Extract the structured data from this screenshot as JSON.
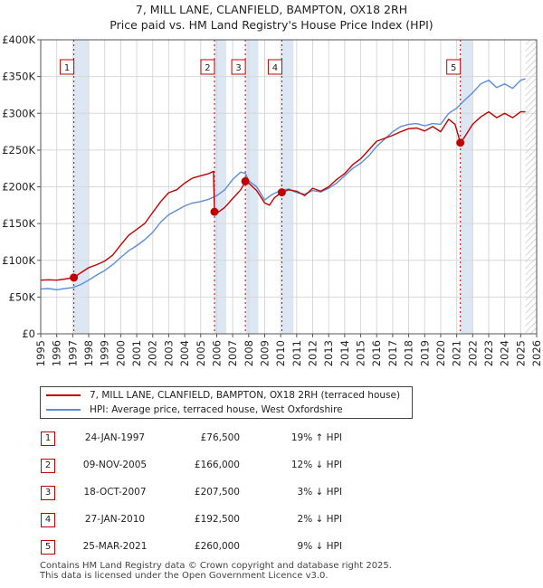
{
  "title_line1": "7, MILL LANE, CLANFIELD, BAMPTON, OX18 2RH",
  "title_line2": "Price paid vs. HM Land Registry's House Price Index (HPI)",
  "colors": {
    "property": "#c00000",
    "hpi": "#5b8fd4",
    "shade": "#dde6f3",
    "grid": "#d8d8d8"
  },
  "chart_data": {
    "type": "line",
    "xlim": [
      1995,
      2026
    ],
    "ylim": [
      0,
      400000
    ],
    "x_ticks": [
      1995,
      1996,
      1997,
      1998,
      1999,
      2000,
      2001,
      2002,
      2003,
      2004,
      2005,
      2006,
      2007,
      2008,
      2009,
      2010,
      2011,
      2012,
      2013,
      2014,
      2015,
      2016,
      2017,
      2018,
      2019,
      2020,
      2021,
      2022,
      2023,
      2024,
      2025,
      2026
    ],
    "x_tick_labels": [
      "1995",
      "1996",
      "1997",
      "1998",
      "1999",
      "2000",
      "2001",
      "2002",
      "2003",
      "2004",
      "2005",
      "2006",
      "2007",
      "2008",
      "2009",
      "2010",
      "2011",
      "2012",
      "2013",
      "2014",
      "2015",
      "2016",
      "2017",
      "2018",
      "2019",
      "2020",
      "2021",
      "2022",
      "2023",
      "2024",
      "2025",
      "2026"
    ],
    "y_ticks": [
      0,
      50000,
      100000,
      150000,
      200000,
      250000,
      300000,
      350000,
      400000
    ],
    "y_tick_labels": [
      "£0",
      "£50K",
      "£100K",
      "£150K",
      "£200K",
      "£250K",
      "£300K",
      "£350K",
      "£400K"
    ],
    "shaded_ranges": [
      [
        1997.07,
        1998.0
      ],
      [
        2005.86,
        2006.6
      ],
      [
        2007.8,
        2008.6
      ],
      [
        2010.07,
        2010.8
      ],
      [
        2021.23,
        2022.0
      ]
    ],
    "future_hatch_from": 2025.3,
    "series": [
      {
        "name": "7, MILL LANE, CLANFIELD, BAMPTON, OX18 2RH (terraced house)",
        "color": "#c00000",
        "x": [
          1995.0,
          1995.5,
          1996.0,
          1996.5,
          1997.07,
          1997.5,
          1998.0,
          1998.5,
          1999.0,
          1999.5,
          2000.0,
          2000.5,
          2001.0,
          2001.5,
          2002.0,
          2002.5,
          2003.0,
          2003.5,
          2004.0,
          2004.5,
          2005.0,
          2005.5,
          2005.8,
          2005.86,
          2006.0,
          2006.5,
          2007.0,
          2007.5,
          2007.79,
          2008.0,
          2008.5,
          2009.0,
          2009.3,
          2009.6,
          2010.07,
          2010.5,
          2011.0,
          2011.5,
          2012.0,
          2012.5,
          2013.0,
          2013.5,
          2014.0,
          2014.5,
          2015.0,
          2015.5,
          2016.0,
          2016.5,
          2017.0,
          2017.5,
          2018.0,
          2018.5,
          2019.0,
          2019.5,
          2020.0,
          2020.5,
          2020.9,
          2021.23,
          2021.5,
          2022.0,
          2022.5,
          2023.0,
          2023.5,
          2024.0,
          2024.5,
          2025.0,
          2025.3
        ],
        "y": [
          73000,
          73500,
          73000,
          74500,
          76500,
          83000,
          90000,
          94000,
          99000,
          107000,
          121000,
          134000,
          142000,
          150000,
          165000,
          180000,
          192000,
          196000,
          205000,
          212000,
          215000,
          218000,
          221000,
          166000,
          164000,
          172000,
          184000,
          196000,
          207500,
          205000,
          195000,
          178000,
          175000,
          185000,
          192500,
          196000,
          194000,
          188000,
          198000,
          194000,
          200000,
          210000,
          218000,
          230000,
          238000,
          250000,
          262000,
          266000,
          270000,
          275000,
          279000,
          280000,
          276000,
          282000,
          275000,
          292000,
          285000,
          260000,
          268000,
          285000,
          295000,
          302000,
          294000,
          300000,
          294000,
          302000,
          302000
        ]
      },
      {
        "name": "HPI: Average price, terraced house, West Oxfordshire",
        "color": "#5b8fd4",
        "x": [
          1995.0,
          1995.5,
          1996.0,
          1996.5,
          1997.0,
          1997.5,
          1998.0,
          1998.5,
          1999.0,
          1999.5,
          2000.0,
          2000.5,
          2001.0,
          2001.5,
          2002.0,
          2002.5,
          2003.0,
          2003.5,
          2004.0,
          2004.5,
          2005.0,
          2005.5,
          2006.0,
          2006.5,
          2007.0,
          2007.5,
          2007.8,
          2008.0,
          2008.5,
          2009.0,
          2009.5,
          2010.0,
          2010.5,
          2011.0,
          2011.5,
          2012.0,
          2012.5,
          2013.0,
          2013.5,
          2014.0,
          2014.5,
          2015.0,
          2015.5,
          2016.0,
          2016.5,
          2017.0,
          2017.5,
          2018.0,
          2018.5,
          2019.0,
          2019.5,
          2020.0,
          2020.5,
          2021.0,
          2021.5,
          2022.0,
          2022.5,
          2023.0,
          2023.5,
          2024.0,
          2024.5,
          2025.0,
          2025.3
        ],
        "y": [
          61000,
          61500,
          60000,
          61500,
          63000,
          67000,
          73000,
          80000,
          86000,
          94000,
          104000,
          113000,
          120000,
          128000,
          138000,
          152000,
          162000,
          168000,
          174000,
          178000,
          180000,
          183000,
          188000,
          196000,
          210000,
          220000,
          218000,
          208000,
          200000,
          182000,
          190000,
          195000,
          197000,
          192000,
          190000,
          195000,
          193000,
          198000,
          205000,
          215000,
          225000,
          232000,
          242000,
          255000,
          265000,
          275000,
          282000,
          285000,
          286000,
          283000,
          286000,
          285000,
          300000,
          307000,
          318000,
          328000,
          340000,
          345000,
          335000,
          340000,
          334000,
          345000,
          347000
        ]
      }
    ],
    "transactions": [
      {
        "label": "1",
        "x": 1997.07,
        "y": 76500
      },
      {
        "label": "2",
        "x": 2005.86,
        "y": 166000
      },
      {
        "label": "3",
        "x": 2007.79,
        "y": 207500
      },
      {
        "label": "4",
        "x": 2010.07,
        "y": 192500
      },
      {
        "label": "5",
        "x": 2021.23,
        "y": 260000
      }
    ]
  },
  "legend": {
    "property_label": "7, MILL LANE, CLANFIELD, BAMPTON, OX18 2RH (terraced house)",
    "hpi_label": "HPI: Average price, terraced house, West Oxfordshire"
  },
  "transactions_table": [
    {
      "num": "1",
      "date": "24-JAN-1997",
      "price": "£76,500",
      "diff": "19% ↑ HPI"
    },
    {
      "num": "2",
      "date": "09-NOV-2005",
      "price": "£166,000",
      "diff": "12% ↓ HPI"
    },
    {
      "num": "3",
      "date": "18-OCT-2007",
      "price": "£207,500",
      "diff": "3% ↓ HPI"
    },
    {
      "num": "4",
      "date": "27-JAN-2010",
      "price": "£192,500",
      "diff": "2% ↓ HPI"
    },
    {
      "num": "5",
      "date": "25-MAR-2021",
      "price": "£260,000",
      "diff": "9% ↓ HPI"
    }
  ],
  "footer_line1": "Contains HM Land Registry data © Crown copyright and database right 2025.",
  "footer_line2": "This data is licensed under the Open Government Licence v3.0."
}
